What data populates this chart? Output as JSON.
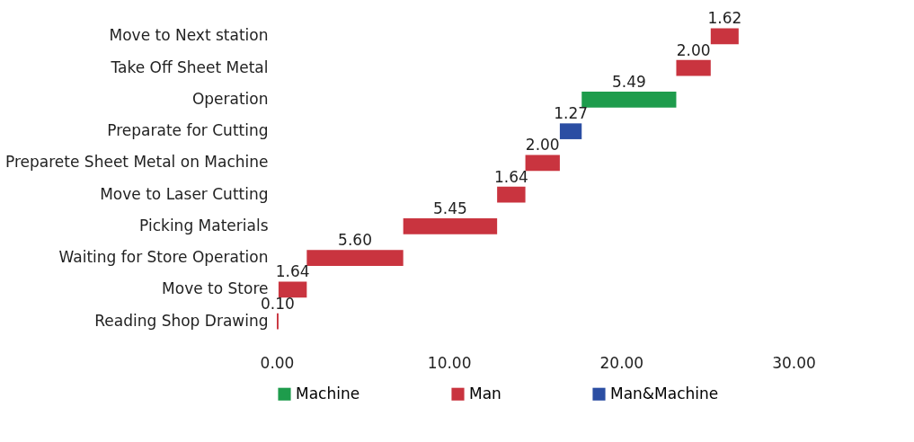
{
  "chart_data": {
    "type": "bar",
    "orientation": "horizontal",
    "categories": [
      "Move to Next station",
      "Take Off Sheet Metal",
      "Operation",
      "Preparate for Cutting",
      "Preparete Sheet Metal on Machine",
      "Move to Laser Cutting",
      "Picking Materials",
      "Waiting for Store Operation",
      "Move to Store",
      "Reading Shop  Drawing"
    ],
    "series": [
      {
        "name": "Machine",
        "color": "#1e9c4c",
        "values": [
          null,
          null,
          5.49,
          null,
          null,
          null,
          null,
          null,
          null,
          null
        ],
        "base": [
          null,
          null,
          17.7,
          null,
          null,
          null,
          null,
          null,
          null,
          null
        ]
      },
      {
        "name": "Man",
        "color": "#c9343f",
        "values": [
          1.62,
          2.0,
          null,
          null,
          2.0,
          1.64,
          5.45,
          5.6,
          1.64,
          0.1
        ],
        "base": [
          25.19,
          23.19,
          null,
          null,
          14.43,
          12.79,
          7.34,
          1.74,
          0.1,
          0
        ]
      },
      {
        "name": "Man&Machine",
        "color": "#2b4ea3",
        "values": [
          null,
          null,
          null,
          1.27,
          null,
          null,
          null,
          null,
          null,
          null
        ],
        "base": [
          null,
          null,
          null,
          16.43,
          null,
          null,
          null,
          null,
          null,
          null
        ]
      }
    ],
    "value_labels": [
      "1.62",
      "2.00",
      "5.49",
      "1.27",
      "2.00",
      "1.64",
      "5.45",
      "5.60",
      "1.64",
      "0.10"
    ],
    "xlim": [
      0,
      30
    ],
    "xticks": [
      {
        "value": 0,
        "label": "0.00"
      },
      {
        "value": 10,
        "label": "10.00"
      },
      {
        "value": 20,
        "label": "20.00"
      },
      {
        "value": 30,
        "label": "30.00"
      }
    ],
    "grid": false,
    "legend": "bottom"
  }
}
